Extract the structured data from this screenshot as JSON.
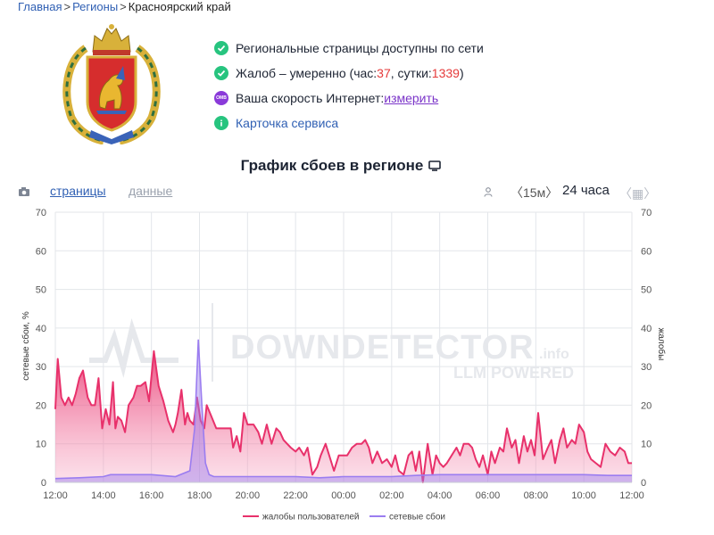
{
  "breadcrumb": {
    "home": "Главная",
    "regions": "Регионы",
    "current": "Красноярский край",
    "separator": ">"
  },
  "status": {
    "available": "Региональные страницы доступны по сети",
    "complaints_prefix": "Жалоб – умеренно (час: ",
    "complaints_hour": "37",
    "complaints_mid": ", сутки: ",
    "complaints_day": "1339",
    "complaints_suffix": ")",
    "speed_prefix": "Ваша скорость Интернет: ",
    "speed_link": "измерить",
    "speed_badge": "OMB",
    "service_card": "Карточка сервиса"
  },
  "chart_section": {
    "title": "График сбоев в регионе",
    "tab_pages": "страницы",
    "tab_data": "данные",
    "interval": "〈15м〉",
    "period": "24 часа",
    "nav": "〈▦〉"
  },
  "icons": {
    "check": "check-icon",
    "speed": "speed-test-icon",
    "info": "info-icon",
    "camera": "camera-icon",
    "user": "user-icon",
    "screen": "screen-icon",
    "calendar": "calendar-icon"
  },
  "colors": {
    "complaints": "#e8316b",
    "outages": "#9b7df0",
    "link": "#2f5fb3",
    "status_ok": "#27c47f",
    "warning_number": "#e53a3a",
    "speed_badge": "#8a3ad9"
  },
  "watermark": {
    "main": "DOWNDETECTOR",
    "suffix": ".info",
    "sub": "LLM POWERED"
  },
  "chart_data": {
    "type": "area",
    "title": "",
    "xlabel": "",
    "ylabel": "сетевые сбои, %",
    "ylabel_right": "жалобы",
    "ylim": [
      0,
      70
    ],
    "yticks": [
      0,
      10,
      20,
      30,
      40,
      50,
      60,
      70
    ],
    "xticks": [
      "12:00",
      "14:00",
      "16:00",
      "18:00",
      "20:00",
      "22:00",
      "00:00",
      "02:00",
      "04:00",
      "06:00",
      "08:00",
      "10:00",
      "12:00"
    ],
    "x_unit": "hours since 12:00",
    "grid": true,
    "legend_position": "bottom",
    "series": [
      {
        "name": "жалобы пользователей",
        "x": [
          0,
          0.1,
          0.25,
          0.4,
          0.55,
          0.7,
          0.85,
          1.0,
          1.15,
          1.35,
          1.5,
          1.65,
          1.8,
          1.95,
          2.1,
          2.25,
          2.4,
          2.5,
          2.6,
          2.75,
          2.9,
          3.05,
          3.25,
          3.4,
          3.55,
          3.75,
          3.9,
          4.1,
          4.3,
          4.5,
          4.7,
          4.9,
          5.0,
          5.1,
          5.25,
          5.4,
          5.5,
          5.6,
          5.75,
          5.9,
          6.05,
          6.2,
          6.3,
          6.5,
          6.7,
          6.85,
          7.0,
          7.15,
          7.3,
          7.4,
          7.55,
          7.7,
          7.85,
          8.0,
          8.1,
          8.25,
          8.45,
          8.6,
          8.8,
          9.0,
          9.2,
          9.35,
          9.5,
          9.65,
          9.8,
          10.0,
          10.15,
          10.35,
          10.5,
          10.7,
          10.9,
          11.05,
          11.25,
          11.45,
          11.6,
          11.8,
          11.95,
          12.15,
          12.35,
          12.55,
          12.75,
          12.9,
          13.05,
          13.2,
          13.4,
          13.6,
          13.8,
          14.0,
          14.15,
          14.3,
          14.5,
          14.7,
          14.85,
          15.0,
          15.15,
          15.3,
          15.5,
          15.7,
          15.85,
          16.0,
          16.15,
          16.3,
          16.5,
          16.7,
          16.85,
          17.0,
          17.2,
          17.35,
          17.5,
          17.65,
          17.8,
          18.0,
          18.15,
          18.3,
          18.5,
          18.65,
          18.8,
          19.0,
          19.15,
          19.3,
          19.5,
          19.65,
          19.8,
          19.95,
          20.1,
          20.3,
          20.5,
          20.65,
          20.8,
          21.0,
          21.15,
          21.3,
          21.5,
          21.65,
          21.8,
          22.0,
          22.15,
          22.3,
          22.5,
          22.7,
          22.9,
          23.1,
          23.3,
          23.5,
          23.7,
          23.85,
          24.0
        ],
        "values": [
          19,
          32,
          22,
          20,
          22,
          20,
          23,
          27,
          29,
          22,
          20,
          20,
          27,
          14,
          19,
          15,
          26,
          14,
          17,
          16,
          13,
          20,
          22,
          25,
          25,
          26,
          21,
          34,
          25,
          21,
          16,
          13,
          15,
          18,
          24,
          15,
          18,
          16,
          15,
          22,
          16,
          14,
          20,
          17,
          14,
          14,
          14,
          14,
          14,
          9,
          12,
          8,
          18,
          15,
          15,
          15,
          13,
          10,
          15,
          10,
          14,
          13,
          11,
          10,
          9,
          8,
          9,
          7,
          9,
          2,
          4,
          7,
          10,
          6,
          3,
          7,
          7,
          7,
          9,
          10,
          10,
          11,
          9,
          5,
          8,
          5,
          6,
          4,
          7,
          3,
          2,
          7,
          8,
          3,
          8,
          0,
          10,
          2,
          7,
          5,
          4,
          5,
          7,
          9,
          7,
          10,
          10,
          9,
          6,
          4,
          7,
          2,
          8,
          5,
          9,
          8,
          14,
          9,
          11,
          5,
          12,
          8,
          11,
          7,
          18,
          6,
          9,
          11,
          5,
          11,
          14,
          9,
          11,
          10,
          15,
          13,
          8,
          6,
          5,
          4,
          10,
          8,
          7,
          9,
          8,
          5,
          5
        ]
      },
      {
        "name": "сетевые сбои",
        "x": [
          0,
          1,
          2,
          2.3,
          3,
          4,
          5,
          5.6,
          5.8,
          5.95,
          6.1,
          6.25,
          6.4,
          6.6,
          7,
          8,
          9,
          10,
          11,
          12,
          13,
          14,
          15,
          16,
          17,
          18,
          19,
          20,
          21,
          22,
          23,
          24
        ],
        "values": [
          1,
          1.2,
          1.5,
          2,
          2,
          2,
          1.5,
          3,
          14,
          37,
          20,
          5,
          2,
          1.5,
          1.5,
          1.5,
          1.5,
          1.5,
          1.2,
          1.5,
          1.5,
          1.5,
          1.8,
          2,
          2,
          2,
          2,
          2,
          2,
          2,
          1.8,
          1.8
        ]
      }
    ]
  }
}
